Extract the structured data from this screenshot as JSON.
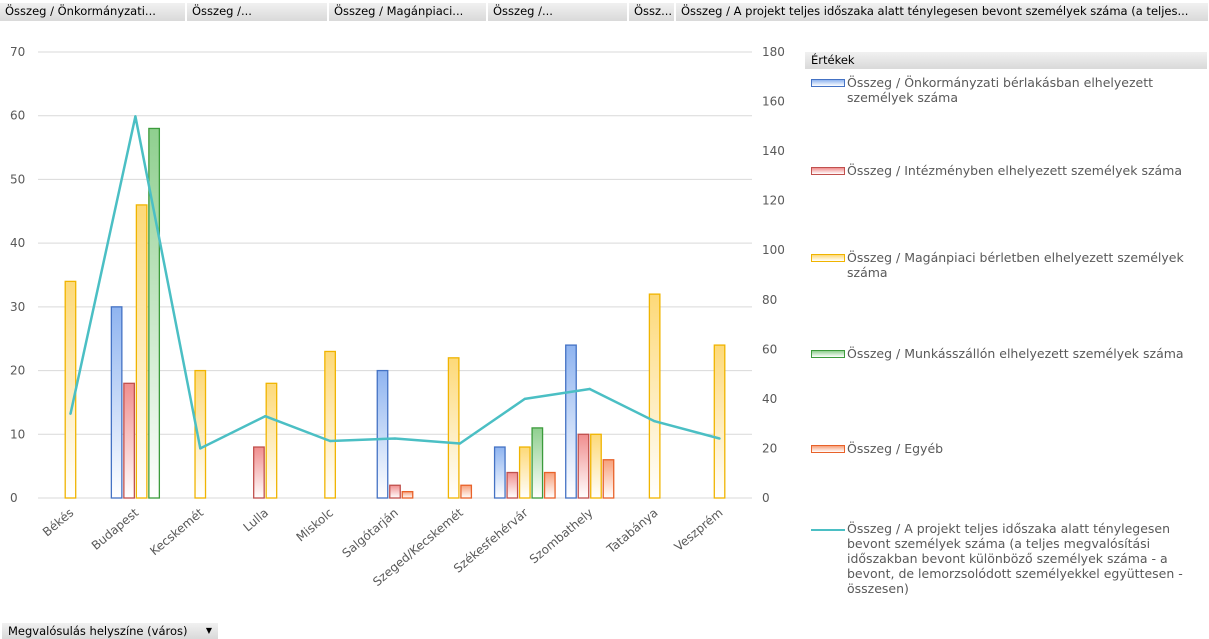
{
  "field_buttons": [
    {
      "label": "Összeg / Önkormányzati..."
    },
    {
      "label": "Összeg /..."
    },
    {
      "label": "Összeg / Magánpiaci..."
    },
    {
      "label": "Összeg /..."
    },
    {
      "label": "Össz..."
    },
    {
      "label": "Összeg / A projekt teljes időszaka alatt ténylegesen bevont személyek száma  (a teljes..."
    }
  ],
  "legend": {
    "header": "Értékek",
    "items": [
      {
        "text": "Összeg / Önkormányzati bérlakásban elhelyezett személyek száma",
        "color": "#8fb4f0",
        "border": "#4472c4"
      },
      {
        "text": "Összeg / Intézményben elhelyezett személyek száma",
        "color": "#f08e8e",
        "border": "#c0504d"
      },
      {
        "text": "Összeg / Magánpiaci bérletben elhelyezett személyek száma",
        "color": "#fdd978",
        "border": "#f0b400"
      },
      {
        "text": "Összeg / Munkásszállón elhelyezett személyek száma",
        "color": "#8fcf8f",
        "border": "#3c9b3c"
      },
      {
        "text": "Összeg / Egyéb",
        "color": "#f7a07a",
        "border": "#e8622a"
      },
      {
        "text": "Összeg / A projekt teljes időszaka alatt ténylegesen bevont személyek száma  (a teljes megvalósítási időszakban bevont különböző személyek száma - a bevont, de lemorzsolódott személyekkel együttesen - összesen)",
        "color": "#4bbfc4",
        "line": true
      }
    ]
  },
  "axis_field_button": {
    "label": "Megvalósulás helyszíne (város)",
    "arrow": "▼"
  },
  "chart_data": {
    "type": "bar",
    "categories": [
      "Békés",
      "Budapest",
      "Kecskemét",
      "Lulla",
      "Miskolc",
      "Salgótarján",
      "Szeged/Kecskemét",
      "Székesfehérvár",
      "Szombathely",
      "Tatabánya",
      "Veszprém"
    ],
    "series": [
      {
        "name": "Összeg / Önkormányzati bérlakásban elhelyezett személyek száma",
        "color": "#8fb4f0",
        "border": "#4472c4",
        "values": [
          null,
          30,
          null,
          null,
          null,
          20,
          null,
          8,
          24,
          null,
          null
        ]
      },
      {
        "name": "Összeg / Intézményben elhelyezett személyek száma",
        "color": "#f08e8e",
        "border": "#c0504d",
        "values": [
          null,
          18,
          null,
          8,
          null,
          2,
          null,
          4,
          10,
          null,
          null
        ]
      },
      {
        "name": "Összeg / Magánpiaci bérletben elhelyezett személyek száma",
        "color": "#fdd978",
        "border": "#f0b400",
        "values": [
          34,
          46,
          20,
          18,
          23,
          null,
          22,
          8,
          10,
          32,
          24
        ]
      },
      {
        "name": "Összeg / Munkásszállón elhelyezett személyek száma",
        "color": "#8fcf8f",
        "border": "#3c9b3c",
        "values": [
          null,
          58,
          null,
          null,
          null,
          null,
          null,
          11,
          null,
          null,
          null
        ]
      },
      {
        "name": "Összeg / Egyéb",
        "color": "#f7a07a",
        "border": "#e8622a",
        "values": [
          null,
          null,
          null,
          null,
          null,
          1,
          2,
          4,
          6,
          null,
          null
        ]
      }
    ],
    "line_series": {
      "name": "Összeg / A projekt teljes időszaka alatt ténylegesen bevont személyek száma  (a teljes megvalósítási időszakban bevont különböző személyek száma - a bevont, de lemorzsolódott személyekkel együttesen - összesen)",
      "color": "#4bbfc4",
      "axis": "right",
      "values": [
        34,
        154,
        20,
        33,
        23,
        24,
        22,
        40,
        44,
        31,
        24
      ]
    },
    "ylim": [
      0,
      70
    ],
    "yticks": [
      0,
      10,
      20,
      30,
      40,
      50,
      60,
      70
    ],
    "y2lim": [
      0,
      180
    ],
    "y2ticks": [
      0,
      20,
      40,
      60,
      80,
      100,
      120,
      140,
      160,
      180
    ],
    "gridlines": true,
    "legend_position": "right"
  }
}
